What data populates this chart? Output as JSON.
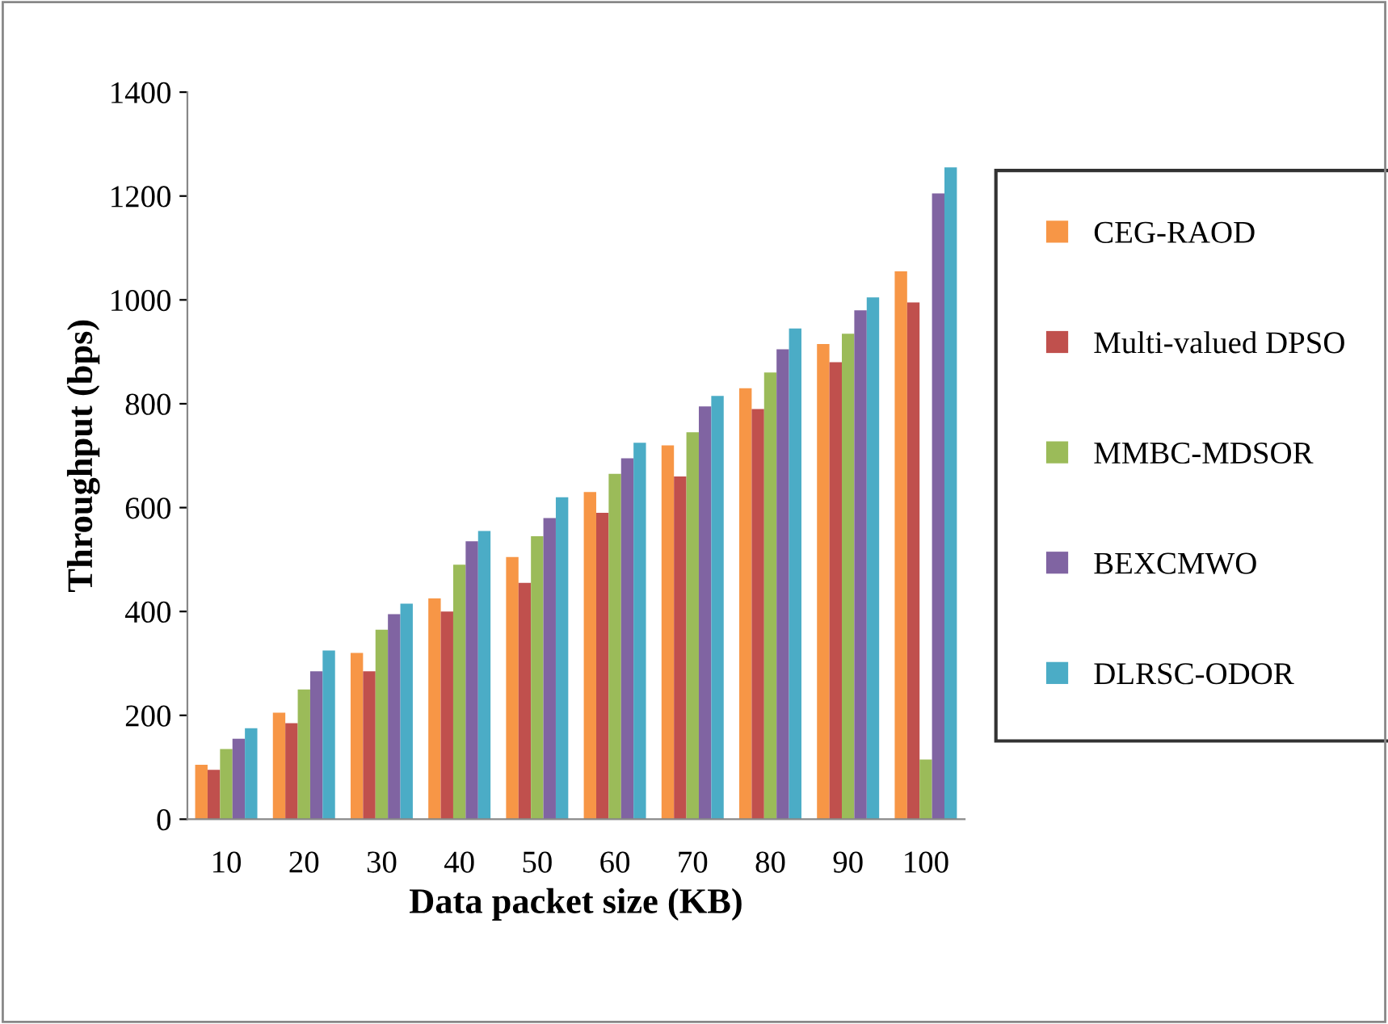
{
  "chart_data": {
    "type": "bar",
    "xlabel": "Data packet size (KB)",
    "ylabel": "Throughput (bps)",
    "categories": [
      "10",
      "20",
      "30",
      "40",
      "50",
      "60",
      "70",
      "80",
      "90",
      "100"
    ],
    "series": [
      {
        "name": "CEG-RAOD",
        "color": "#f79646",
        "values": [
          105,
          205,
          320,
          425,
          505,
          630,
          720,
          830,
          915,
          1055
        ]
      },
      {
        "name": "Multi-valued DPSO",
        "color": "#c0504d",
        "values": [
          95,
          185,
          285,
          400,
          455,
          590,
          660,
          790,
          880,
          995
        ]
      },
      {
        "name": "MMBC-MDSOR",
        "color": "#9bbb59",
        "values": [
          135,
          250,
          365,
          490,
          545,
          665,
          745,
          860,
          935,
          115
        ]
      },
      {
        "name": "BEXCMWO",
        "color": "#8064a2",
        "values": [
          155,
          285,
          395,
          535,
          580,
          695,
          795,
          905,
          980,
          1205
        ]
      },
      {
        "name": "DLRSC-ODOR",
        "color": "#4bacc6",
        "values": [
          175,
          325,
          415,
          555,
          620,
          725,
          815,
          945,
          1005,
          1255
        ]
      }
    ],
    "ylim": [
      0,
      1400
    ],
    "yticks": [
      0,
      200,
      400,
      600,
      800,
      1000,
      1200,
      1400
    ],
    "grid": false,
    "legend": "right"
  }
}
